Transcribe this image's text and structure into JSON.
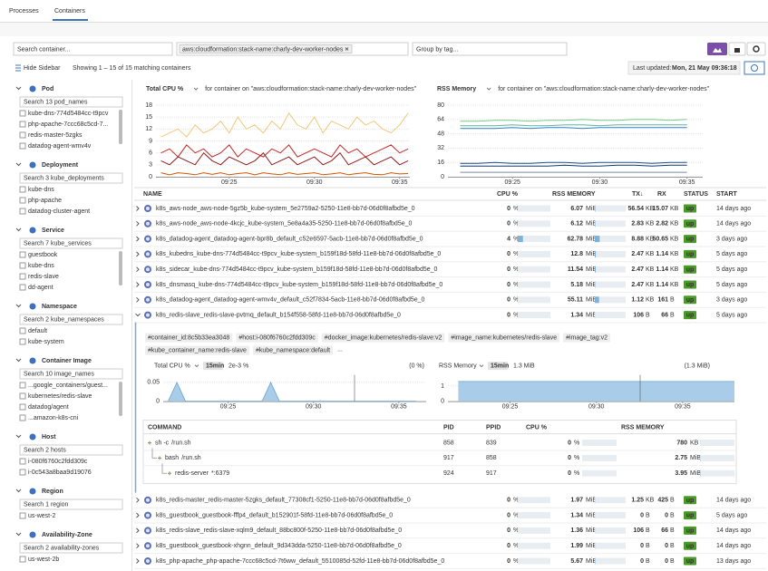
{
  "header": {
    "tabs": [
      "Processes",
      "Containers"
    ],
    "search_placeholder": "Search container...",
    "filter_tag": "aws:cloudformation:stack-name:charly-dev-worker-nodes",
    "group_placeholder": "Group by tag..."
  },
  "toolbar": {
    "hide_sidebar": "Hide Sidebar",
    "showing": "Showing 1 – 15 of 15 matching containers",
    "last_updated_label": "Last updated:",
    "last_updated": "Mon, 21 May 09:36:18"
  },
  "sidebar": {
    "sections": [
      {
        "title": "Pod",
        "search": "Search 13 pod_names",
        "items": [
          "kube-dns-774d5484cc-t9pcv",
          "php-apache-7ccc68c5cd-7...",
          "redis-master-5zgks",
          "datadog-agent-wmv4v"
        ]
      },
      {
        "title": "Deployment",
        "search": "Search 3 kube_deployments",
        "items": [
          "kube-dns",
          "php-apache",
          "datadog-cluster-agent"
        ]
      },
      {
        "title": "Service",
        "search": "Search 7 kube_services",
        "items": [
          "guestbook",
          "kube-dns",
          "redis-slave",
          "dd-agent"
        ]
      },
      {
        "title": "Namespace",
        "search": "Search 2 kube_namespaces",
        "items": [
          "default",
          "kube-system"
        ]
      },
      {
        "title": "Container Image",
        "search": "Search 10 image_names",
        "items": [
          "...google_containers/guest...",
          "kubernetes/redis-slave",
          "datadog/agent",
          "...amazon-k8s-cni"
        ]
      },
      {
        "title": "Host",
        "search": "Search 2 hosts",
        "items": [
          "i-080f6760c2fdd309c",
          "i-0c543a8baa9d19076"
        ]
      },
      {
        "title": "Region",
        "search": "Search 1 region",
        "items": [
          "us-west-2"
        ]
      },
      {
        "title": "Availability-Zone",
        "search": "Search 2 availability-zones",
        "items": [
          "us-west-2b"
        ]
      }
    ]
  },
  "charts": [
    {
      "type": "line",
      "title": "Total CPU %",
      "subtitle": "for container on \"aws:cloudformation:stack-name:charly-dev-worker-nodes\"",
      "x": [
        21,
        21.5,
        22,
        22.5,
        23,
        23.5,
        24,
        24.5,
        25,
        25.5,
        26,
        26.5,
        27,
        27.5,
        28,
        28.5,
        29,
        29.5,
        30,
        30.5,
        31,
        31.5,
        32,
        32.5,
        33,
        33.5,
        34,
        34.5,
        35,
        35.5
      ],
      "series": [
        {
          "color": "#f3c77a",
          "values": [
            10,
            11,
            12,
            10,
            13,
            11,
            12,
            14,
            11,
            15,
            12,
            13,
            11,
            14,
            12,
            16,
            13,
            12,
            15,
            11,
            14,
            13,
            12,
            15,
            13,
            14,
            12,
            11,
            13,
            16
          ]
        },
        {
          "color": "#c62828",
          "values": [
            6,
            7,
            5,
            8,
            6,
            7,
            5,
            6,
            8,
            5,
            7,
            6,
            5,
            7,
            6,
            8,
            5,
            6,
            7,
            6,
            5,
            8,
            6,
            7,
            5,
            6,
            7,
            8,
            6,
            7
          ]
        },
        {
          "color": "#8e1b1b",
          "values": [
            4,
            3,
            5,
            4,
            3,
            6,
            4,
            3,
            5,
            4,
            3,
            4,
            6,
            3,
            4,
            5,
            3,
            4,
            5,
            3,
            4,
            6,
            3,
            4,
            5,
            3,
            4,
            5,
            3,
            4
          ]
        },
        {
          "color": "#d35400",
          "values": [
            1,
            0.5,
            1,
            0.8,
            0.5,
            1,
            0.6,
            1,
            0.5,
            0.8,
            1,
            0.5,
            1,
            0.7,
            0.5,
            1,
            0.6,
            0.8,
            1,
            0.5,
            0.7,
            1,
            0.5,
            0.8,
            1,
            0.6,
            0.5,
            1,
            0.7,
            0.8
          ]
        }
      ],
      "xlim": [
        20.7,
        35.6
      ],
      "xticks": [
        {
          "value": 25,
          "label": "09:25"
        },
        {
          "value": 30,
          "label": "09:30"
        },
        {
          "value": 35,
          "label": "09:35"
        }
      ],
      "ylim": [
        0,
        18
      ],
      "yticks": [
        0,
        3,
        6,
        9,
        12,
        15,
        18
      ]
    },
    {
      "type": "line",
      "title": "RSS Memory",
      "subtitle": "for container on \"aws:cloudformation:stack-name:charly-dev-worker-nodes\"",
      "x": [
        22,
        23,
        24,
        25,
        26,
        27,
        28,
        29,
        30,
        31,
        32,
        33,
        34,
        35
      ],
      "series": [
        {
          "color": "#7cc98a",
          "values": [
            62,
            62,
            63,
            63,
            62,
            63,
            63,
            64,
            63,
            63,
            64,
            64,
            63,
            64
          ]
        },
        {
          "color": "#5fb3a8",
          "values": [
            57,
            57,
            57,
            58,
            57,
            57,
            58,
            58,
            57,
            58,
            58,
            58,
            58,
            58
          ]
        },
        {
          "color": "#2f7fc1",
          "values": [
            54,
            54,
            54,
            55,
            54,
            55,
            55,
            54,
            55,
            55,
            55,
            55,
            55,
            55
          ]
        },
        {
          "color": "#1f4e8c",
          "values": [
            15,
            15,
            16,
            15,
            15,
            16,
            16,
            15,
            16,
            16,
            16,
            15,
            16,
            16
          ]
        },
        {
          "color": "#123a6b",
          "values": [
            12,
            12,
            12,
            12,
            12,
            12,
            13,
            12,
            12,
            13,
            13,
            12,
            13,
            13
          ]
        },
        {
          "color": "#7a8aa0",
          "values": [
            5,
            5,
            5,
            5,
            5,
            5,
            5,
            5,
            5,
            5,
            5,
            5,
            5,
            5
          ]
        }
      ],
      "xlim": [
        21.3,
        35.9
      ],
      "xticks": [
        {
          "value": 25,
          "label": "09:25"
        },
        {
          "value": 30,
          "label": "09:30"
        },
        {
          "value": 35,
          "label": "09:35"
        }
      ],
      "ylim": [
        0,
        80
      ],
      "yticks": [
        0,
        16,
        32,
        48,
        64,
        80
      ]
    }
  ],
  "table": {
    "columns": [
      "NAME",
      "CPU %",
      "RSS MEMORY",
      "TX↓",
      "RX",
      "STATUS",
      "START"
    ],
    "rows": [
      {
        "name": "k8s_aws-node_aws-node-5gz5b_kube-system_5e2759a2-5250-11e8-bb7d-06d0f8afbd5e_0",
        "cpu": 0,
        "cpu_unit": "%",
        "rss": 6.07,
        "rss_unit": "MiB",
        "tx": 56.54,
        "tx_unit": "KB",
        "rx": 15.07,
        "rx_unit": "KB",
        "status": "up",
        "start": "14 days ago"
      },
      {
        "name": "k8s_aws-node_aws-node-4kcjc_kube-system_5e8a4a35-5250-11e8-bb7d-06d0f8afbd5e_0",
        "cpu": 0,
        "cpu_unit": "%",
        "rss": 6.12,
        "rss_unit": "MiB",
        "tx": 2.83,
        "tx_unit": "KB",
        "rx": 2.82,
        "rx_unit": "KB",
        "status": "up",
        "start": "14 days ago"
      },
      {
        "name": "k8s_datadog-agent_datadog-agent-bpr8b_default_c52e6597-5acb-11e8-bb7d-06d0f8afbd5e_0",
        "cpu": 4,
        "cpu_unit": "%",
        "rss": 62.78,
        "rss_unit": "MiB",
        "tx": 8.88,
        "tx_unit": "KB",
        "rx": 50.65,
        "rx_unit": "KB",
        "status": "up",
        "start": "3 days ago"
      },
      {
        "name": "k8s_kubedns_kube-dns-774d5484cc-t9pcv_kube-system_b159f18d-58fd-11e8-bb7d-06d0f8afbd5e_0",
        "cpu": 0,
        "cpu_unit": "%",
        "rss": 12.8,
        "rss_unit": "MiB",
        "tx": 2.47,
        "tx_unit": "KB",
        "rx": 1.14,
        "rx_unit": "KB",
        "status": "up",
        "start": "5 days ago"
      },
      {
        "name": "k8s_sidecar_kube-dns-774d5484cc-t9pcv_kube-system_b159f18d-58fd-11e8-bb7d-06d0f8afbd5e_0",
        "cpu": 0,
        "cpu_unit": "%",
        "rss": 11.54,
        "rss_unit": "MiB",
        "tx": 2.47,
        "tx_unit": "KB",
        "rx": 1.14,
        "rx_unit": "KB",
        "status": "up",
        "start": "5 days ago"
      },
      {
        "name": "k8s_dnsmasq_kube-dns-774d5484cc-t9pcv_kube-system_b159f18d-58fd-11e8-bb7d-06d0f8afbd5e_0",
        "cpu": 0,
        "cpu_unit": "%",
        "rss": 5.18,
        "rss_unit": "MiB",
        "tx": 2.47,
        "tx_unit": "KB",
        "rx": 1.14,
        "rx_unit": "KB",
        "status": "up",
        "start": "5 days ago"
      },
      {
        "name": "k8s_datadog-agent_datadog-agent-wmv4v_default_c52f7834-5acb-11e8-bb7d-06d0f8afbd5e_0",
        "cpu": 0,
        "cpu_unit": "%",
        "rss": 55.11,
        "rss_unit": "MiB",
        "tx": 1.12,
        "tx_unit": "KB",
        "rx": 161,
        "rx_unit": "B",
        "status": "up",
        "start": "3 days ago"
      },
      {
        "name": "k8s_redis-slave_redis-slave-pvtmq_default_b154f558-58fd-11e8-bb7d-06d0f8afbd5e_0",
        "cpu": 0,
        "cpu_unit": "%",
        "rss": 1.34,
        "rss_unit": "MiB",
        "tx": 106,
        "tx_unit": "B",
        "rx": 66,
        "rx_unit": "B",
        "status": "up",
        "start": "5 days ago",
        "details": {
          "tags": [
            "#container_id:8c5b33ea3048",
            "#host:i-080f6760c2fdd309c",
            "#docker_image:kubernetes/redis-slave:v2",
            "#image_name:kubernetes/redis-slave",
            "#image_tag:v2",
            "#kube_container_name:redis-slave",
            "#kube_namespace:default"
          ],
          "more": "...",
          "cpu_chart": {
            "type": "area",
            "title": "Total CPU %",
            "range": "15min",
            "current": "2e-3 %",
            "total": "(0 %)",
            "color": "#6aa5d6",
            "x": [
              21.5,
              22,
              22.5,
              23,
              23.5,
              24,
              24.5,
              25,
              25.5,
              26,
              26.5,
              27,
              27.5,
              28,
              28.5,
              29,
              29.5,
              30,
              30.5,
              31,
              31.5,
              32,
              32.5,
              33,
              33.5,
              34,
              34.5,
              35,
              35.5,
              36
            ],
            "values": [
              0,
              0.05,
              0,
              0,
              0,
              0,
              0,
              0,
              0,
              0,
              0,
              0,
              0.05,
              0,
              0,
              0,
              0,
              0,
              0,
              0,
              0,
              0,
              0,
              0,
              0,
              0,
              0,
              0,
              0,
              0
            ],
            "xlim": [
              21.2,
              36.6
            ],
            "xticks": [
              {
                "value": 25,
                "label": "09:25"
              },
              {
                "value": 30,
                "label": "09:30"
              },
              {
                "value": 35,
                "label": "09:35"
              }
            ],
            "ylim": [
              0,
              0.06
            ],
            "yticks": [
              0,
              0.05
            ]
          },
          "rss_chart": {
            "type": "area",
            "title": "RSS Memory",
            "range": "15min",
            "current": "1.3 MiB",
            "total": "(1.3 MiB)",
            "color": "#6aa5d6",
            "x": [
              22,
              23,
              24,
              25,
              26,
              27,
              28,
              29,
              30,
              31,
              32,
              33,
              34,
              35,
              36,
              37,
              38
            ],
            "values": [
              1.3,
              1.3,
              1.3,
              1.3,
              1.3,
              1.3,
              1.3,
              1.3,
              1.3,
              1.3,
              1.3,
              1.3,
              1.3,
              1.3,
              1.3,
              1.3,
              1.3
            ],
            "xlim": [
              21.4,
              38
            ],
            "xticks": [
              {
                "value": 25,
                "label": "09:25"
              },
              {
                "value": 30,
                "label": "09:30"
              },
              {
                "value": 35,
                "label": "09:35"
              }
            ],
            "ylim": [
              0,
              1.5
            ],
            "yticks": [
              0,
              1
            ]
          },
          "process_columns": [
            "COMMAND",
            "PID",
            "PPID",
            "CPU %",
            "RSS MEMORY"
          ],
          "processes": [
            {
              "cmd": "sh -c",
              "args": "/run.sh",
              "pid": 858,
              "ppid": 839,
              "cpu": 0,
              "cpu_unit": "%",
              "rss": 780,
              "rss_unit": "KB"
            },
            {
              "cmd": "bash",
              "args": "/run.sh",
              "pid": 917,
              "ppid": 858,
              "cpu": 0,
              "cpu_unit": "%",
              "rss": 2.75,
              "rss_unit": "MiB"
            },
            {
              "cmd": "redis-server",
              "args": "*:6379",
              "pid": 924,
              "ppid": 917,
              "cpu": 0,
              "cpu_unit": "%",
              "rss": 3.95,
              "rss_unit": "MiB"
            }
          ]
        }
      },
      {
        "name": "k8s_redis-master_redis-master-5zgks_default_77308cf1-5250-11e8-bb7d-06d0f8afbd5e_0",
        "cpu": 0,
        "cpu_unit": "%",
        "rss": 1.97,
        "rss_unit": "MiB",
        "tx": 1.25,
        "tx_unit": "KB",
        "rx": 425,
        "rx_unit": "B",
        "status": "up",
        "start": "14 days ago"
      },
      {
        "name": "k8s_guestbook_guestbook-fffp4_default_b152901f-58fd-11e8-bb7d-06d0f8afbd5e_0",
        "cpu": 0,
        "cpu_unit": "%",
        "rss": 1.34,
        "rss_unit": "MiB",
        "tx": 0,
        "tx_unit": "B",
        "rx": 0,
        "rx_unit": "B",
        "status": "up",
        "start": "5 days ago"
      },
      {
        "name": "k8s_redis-slave_redis-slave-xqlm9_default_88bc800f-5250-11e8-bb7d-06d0f8afbd5e_0",
        "cpu": 0,
        "cpu_unit": "%",
        "rss": 1.36,
        "rss_unit": "MiB",
        "tx": 106,
        "tx_unit": "B",
        "rx": 66,
        "rx_unit": "B",
        "status": "up",
        "start": "14 days ago"
      },
      {
        "name": "k8s_guestbook_guestbook-xhgnn_default_9d343dda-5250-11e8-bb7d-06d0f8afbd5e_0",
        "cpu": 0,
        "cpu_unit": "%",
        "rss": 1.99,
        "rss_unit": "MiB",
        "tx": 0,
        "tx_unit": "B",
        "rx": 0,
        "rx_unit": "B",
        "status": "up",
        "start": "14 days ago"
      },
      {
        "name": "k8s_php-apache_php-apache-7ccc68c5cd-7t6ww_default_5510085d-52fd-11e8-bb7d-06d0f8afbd5e_0",
        "cpu": 0,
        "cpu_unit": "%",
        "rss": 5.67,
        "rss_unit": "MiB",
        "tx": 0,
        "tx_unit": "B",
        "rx": 0,
        "rx_unit": "B",
        "status": "up",
        "start": "13 days ago"
      }
    ]
  }
}
